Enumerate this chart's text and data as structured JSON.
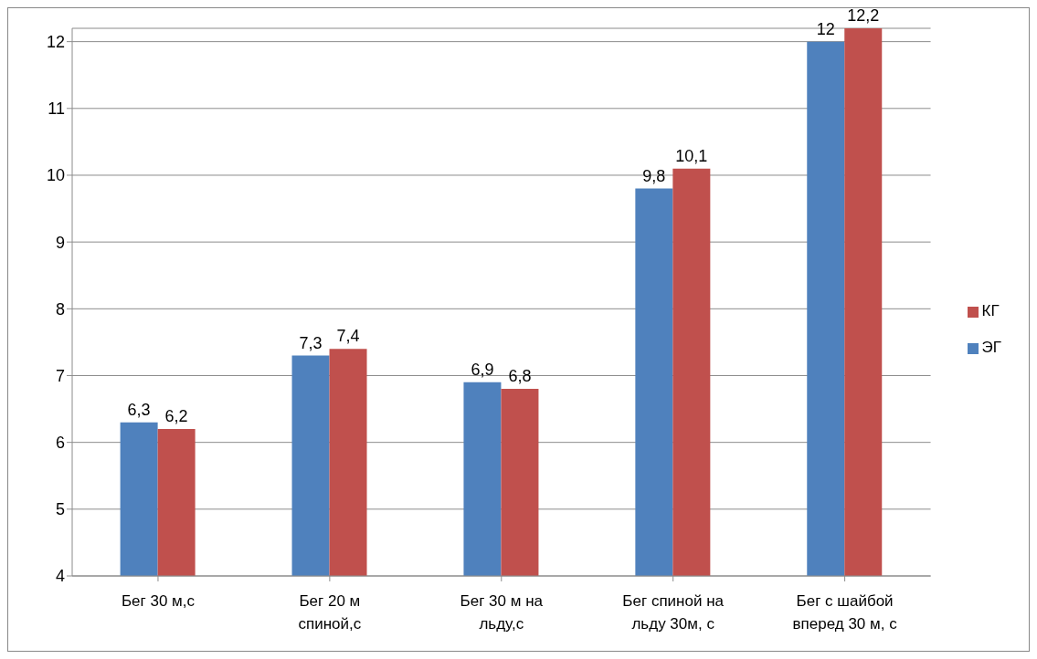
{
  "chart_data": {
    "type": "bar",
    "categories": [
      "Бег 30 м,с",
      "Бег 20 м спиной,с",
      "Бег 30 м на льду,с",
      "Бег спиной на льду 30м, с",
      "Бег с шайбой вперед 30 м, с"
    ],
    "series": [
      {
        "name": "ЭГ",
        "color": "#4f81bd",
        "values": [
          6.3,
          7.3,
          6.9,
          9.8,
          12
        ],
        "value_labels": [
          "6,3",
          "7,3",
          "6,9",
          "9,8",
          "12"
        ]
      },
      {
        "name": "КГ",
        "color": "#c0504d",
        "values": [
          6.2,
          7.4,
          6.8,
          10.1,
          12.2
        ],
        "value_labels": [
          "6,2",
          "7,4",
          "6,8",
          "10,1",
          "12,2"
        ]
      }
    ],
    "ylim": [
      4,
      12.2
    ],
    "yticks": [
      4,
      5,
      6,
      7,
      8,
      9,
      10,
      11,
      12
    ],
    "grid": "y",
    "legend": "right"
  }
}
